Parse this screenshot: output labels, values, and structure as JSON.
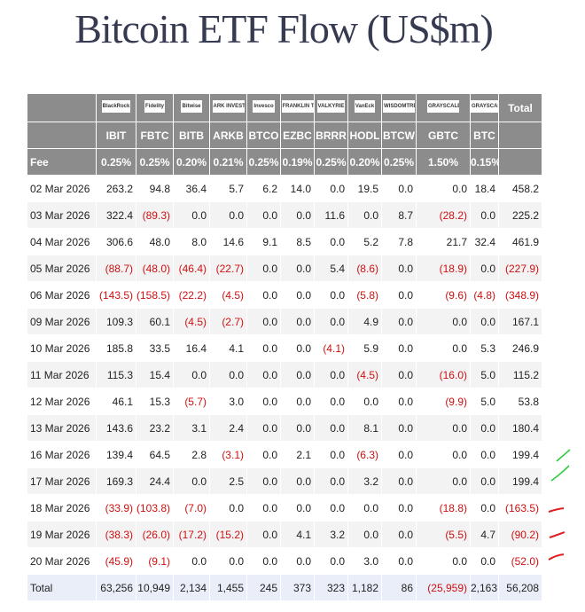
{
  "title": "Bitcoin ETF Flow (US$m)",
  "table": {
    "logos": [
      "BlackRock",
      "Fidelity",
      "Bitwise",
      "ARK INVEST",
      "Invesco",
      "FRANKLIN TEMPLETON",
      "VALKYRIE",
      "VanEck",
      "WISDOMTREE",
      "GRAYSCALE",
      "GRAYSCALE",
      "Total"
    ],
    "tickers": [
      "IBIT",
      "FBTC",
      "BITB",
      "ARKB",
      "BTCO",
      "EZBC",
      "BRRR",
      "HODL",
      "BTCW",
      "GBTC",
      "BTC"
    ],
    "fee": {
      "label": "Fee",
      "values": [
        "0.25%",
        "0.25%",
        "0.20%",
        "0.21%",
        "0.25%",
        "0.19%",
        "0.25%",
        "0.20%",
        "0.25%",
        "1.50%",
        "0.15%"
      ]
    },
    "rows": [
      {
        "date": "02 Mar 2026",
        "values": [
          "263.2",
          "94.8",
          "36.4",
          "5.7",
          "6.2",
          "14.0",
          "0.0",
          "19.5",
          "0.0",
          "0.0",
          "18.4",
          "458.2"
        ]
      },
      {
        "date": "03 Mar 2026",
        "values": [
          "322.4",
          "(89.3)",
          "0.0",
          "0.0",
          "0.0",
          "0.0",
          "11.6",
          "0.0",
          "8.7",
          "(28.2)",
          "0.0",
          "225.2"
        ]
      },
      {
        "date": "04 Mar 2026",
        "values": [
          "306.6",
          "48.0",
          "8.0",
          "14.6",
          "9.1",
          "8.5",
          "0.0",
          "5.2",
          "7.8",
          "21.7",
          "32.4",
          "461.9"
        ]
      },
      {
        "date": "05 Mar 2026",
        "values": [
          "(88.7)",
          "(48.0)",
          "(46.4)",
          "(22.7)",
          "0.0",
          "0.0",
          "5.4",
          "(8.6)",
          "0.0",
          "(18.9)",
          "0.0",
          "(227.9)"
        ]
      },
      {
        "date": "06 Mar 2026",
        "values": [
          "(143.5)",
          "(158.5)",
          "(22.2)",
          "(4.5)",
          "0.0",
          "0.0",
          "0.0",
          "(5.8)",
          "0.0",
          "(9.6)",
          "(4.8)",
          "(348.9)"
        ]
      },
      {
        "date": "09 Mar 2026",
        "values": [
          "109.3",
          "60.1",
          "(4.5)",
          "(2.7)",
          "0.0",
          "0.0",
          "0.0",
          "4.9",
          "0.0",
          "0.0",
          "0.0",
          "167.1"
        ]
      },
      {
        "date": "10 Mar 2026",
        "values": [
          "185.8",
          "33.5",
          "16.4",
          "4.1",
          "0.0",
          "0.0",
          "(4.1)",
          "5.9",
          "0.0",
          "0.0",
          "5.3",
          "246.9"
        ]
      },
      {
        "date": "11 Mar 2026",
        "values": [
          "115.3",
          "15.4",
          "0.0",
          "0.0",
          "0.0",
          "0.0",
          "0.0",
          "(4.5)",
          "0.0",
          "(16.0)",
          "5.0",
          "115.2"
        ]
      },
      {
        "date": "12 Mar 2026",
        "values": [
          "46.1",
          "15.3",
          "(5.7)",
          "3.0",
          "0.0",
          "0.0",
          "0.0",
          "0.0",
          "0.0",
          "(9.9)",
          "5.0",
          "53.8"
        ]
      },
      {
        "date": "13 Mar 2026",
        "values": [
          "143.6",
          "23.2",
          "3.1",
          "2.4",
          "0.0",
          "0.0",
          "0.0",
          "8.1",
          "0.0",
          "0.0",
          "0.0",
          "180.4"
        ]
      },
      {
        "date": "16 Mar 2026",
        "values": [
          "139.4",
          "64.5",
          "2.8",
          "(3.1)",
          "0.0",
          "2.1",
          "0.0",
          "(6.3)",
          "0.0",
          "0.0",
          "0.0",
          "199.4"
        ]
      },
      {
        "date": "17 Mar 2026",
        "values": [
          "169.3",
          "24.4",
          "0.0",
          "2.5",
          "0.0",
          "0.0",
          "0.0",
          "3.2",
          "0.0",
          "0.0",
          "0.0",
          "199.4"
        ]
      },
      {
        "date": "18 Mar 2026",
        "values": [
          "(33.9)",
          "(103.8)",
          "(7.0)",
          "0.0",
          "0.0",
          "0.0",
          "0.0",
          "0.0",
          "0.0",
          "(18.8)",
          "0.0",
          "(163.5)"
        ]
      },
      {
        "date": "19 Mar 2026",
        "values": [
          "(38.3)",
          "(26.0)",
          "(17.2)",
          "(15.2)",
          "0.0",
          "4.1",
          "3.2",
          "0.0",
          "0.0",
          "(5.5)",
          "4.7",
          "(90.2)"
        ]
      },
      {
        "date": "20 Mar 2026",
        "values": [
          "(45.9)",
          "(9.1)",
          "0.0",
          "0.0",
          "0.0",
          "0.0",
          "0.0",
          "3.0",
          "0.0",
          "0.0",
          "0.0",
          "(52.0)"
        ]
      }
    ],
    "total": {
      "label": "Total",
      "values": [
        "63,256",
        "10,949",
        "2,134",
        "1,455",
        "245",
        "373",
        "323",
        "1,182",
        "86",
        "(25,959)",
        "2,163",
        "56,208"
      ]
    }
  }
}
